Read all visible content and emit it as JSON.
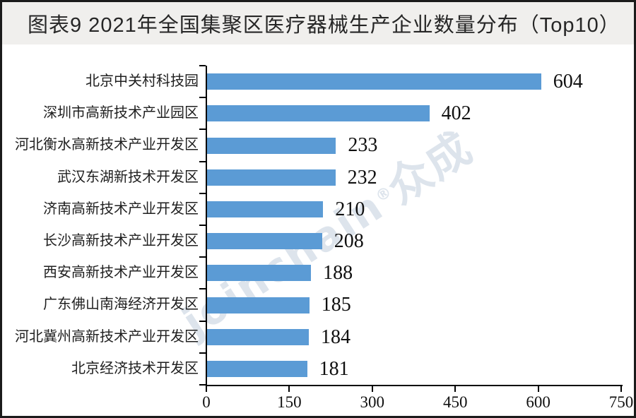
{
  "title_bar": {
    "label": "图表9 2021年全国集聚区医疗器械生产企业数量分布（Top10）"
  },
  "watermark": {
    "brand": "joinchain",
    "reg": "®",
    "suffix": "众成"
  },
  "colors": {
    "bar": "#5B9BD5",
    "header_bg": "#f0efed",
    "border": "#1b1b1b",
    "axis": "#000000",
    "watermark": "#dde4ec",
    "title_text": "#262626"
  },
  "chart_data": {
    "type": "bar",
    "orientation": "horizontal",
    "title": "图表9 2021年全国集聚区医疗器械生产企业数量分布（Top10）",
    "categories": [
      "北京中关村科技园",
      "深圳市高新技术产业园区",
      "河北衡水高新技术产业开发区",
      "武汉东湖新技术开发区",
      "济南高新技术产业开发区",
      "长沙高新技术产业开发区",
      "西安高新技术产业开发区",
      "广东佛山南海经济开发区",
      "河北冀州高新技术产业开发区",
      "北京经济技术开发区"
    ],
    "values": [
      604,
      402,
      233,
      232,
      210,
      208,
      188,
      185,
      184,
      181
    ],
    "x_ticks": [
      0,
      150,
      300,
      450,
      600,
      750
    ],
    "xlim": [
      0,
      750
    ],
    "xlabel": "",
    "ylabel": "",
    "grid": false,
    "legend": false,
    "value_labels": true,
    "bar_color": "#5B9BD5"
  }
}
